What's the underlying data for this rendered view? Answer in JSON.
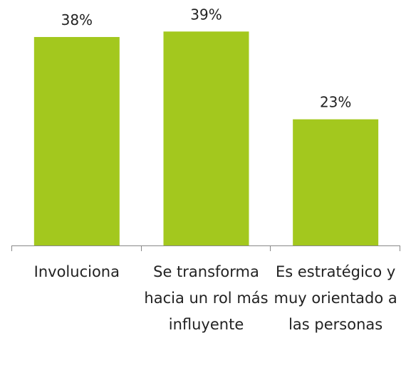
{
  "chart_data": {
    "type": "bar",
    "categories": [
      "Involuciona",
      "Se transforma hacia un rol más influyente",
      "Es estratégico y muy orientado a las personas"
    ],
    "values": [
      38,
      39,
      23
    ],
    "value_labels": [
      "38%",
      "39%",
      "23%"
    ],
    "color": "#a3c81e"
  }
}
